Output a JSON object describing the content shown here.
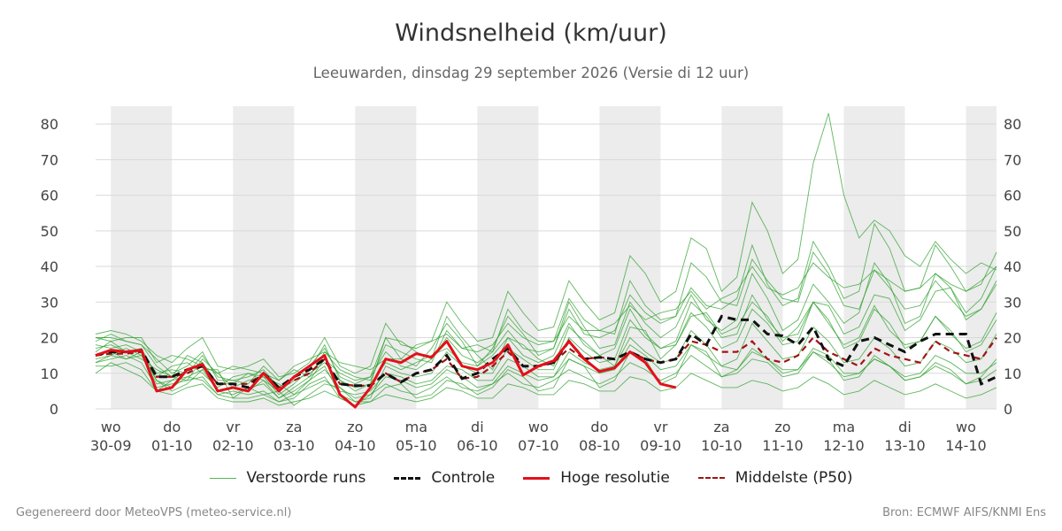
{
  "header": {
    "title": "Windsnelheid (km/uur)",
    "subtitle": "Leeuwarden, dinsdag 29 september 2026 (Versie di 12 uur)"
  },
  "footer": {
    "left": "Gegenereerd door MeteoVPS (meteo-service.nl)",
    "right": "Bron: ECMWF AIFS/KNMI Ens"
  },
  "legend": {
    "members": "Verstoorde runs",
    "control": "Controle",
    "hres": "Hoge resolutie",
    "median": "Middelste (P50)"
  },
  "colors": {
    "members": "#2ca02c",
    "control": "#111111",
    "hres": "#e3101a",
    "median": "#a01414",
    "weekend_band": "#ececec",
    "grid": "#d9d9d9"
  },
  "chart_data": {
    "type": "line",
    "title": "Windsnelheid (km/uur)",
    "subtitle": "Leeuwarden, dinsdag 29 september 2026 (Versie di 12 uur)",
    "ylabel": "",
    "ylim": [
      0,
      85
    ],
    "yticks": [
      0,
      10,
      20,
      30,
      40,
      50,
      60,
      70,
      80
    ],
    "grid": true,
    "legend_position": "bottom",
    "x_unit": "days",
    "xlim": [
      -0.25,
      14.5
    ],
    "x_ticks": [
      {
        "x": 0,
        "day": "wo",
        "date": "30-09"
      },
      {
        "x": 1,
        "day": "do",
        "date": "01-10"
      },
      {
        "x": 2,
        "day": "vr",
        "date": "02-10"
      },
      {
        "x": 3,
        "day": "za",
        "date": "03-10"
      },
      {
        "x": 4,
        "day": "zo",
        "date": "04-10"
      },
      {
        "x": 5,
        "day": "ma",
        "date": "05-10"
      },
      {
        "x": 6,
        "day": "di",
        "date": "06-10"
      },
      {
        "x": 7,
        "day": "wo",
        "date": "07-10"
      },
      {
        "x": 8,
        "day": "do",
        "date": "08-10"
      },
      {
        "x": 9,
        "day": "vr",
        "date": "09-10"
      },
      {
        "x": 10,
        "day": "za",
        "date": "10-10"
      },
      {
        "x": 11,
        "day": "zo",
        "date": "11-10"
      },
      {
        "x": 12,
        "day": "ma",
        "date": "12-10"
      },
      {
        "x": 13,
        "day": "di",
        "date": "13-10"
      },
      {
        "x": 14,
        "day": "wo",
        "date": "14-10"
      }
    ],
    "shaded_ranges": [
      [
        0,
        1
      ],
      [
        2,
        3
      ],
      [
        4,
        5
      ],
      [
        6,
        7
      ],
      [
        8,
        9
      ],
      [
        10,
        11
      ],
      [
        12,
        13
      ],
      [
        14,
        14.5
      ]
    ],
    "x": [
      -0.25,
      0,
      0.25,
      0.5,
      0.75,
      1,
      1.25,
      1.5,
      1.75,
      2,
      2.25,
      2.5,
      2.75,
      3,
      3.25,
      3.5,
      3.75,
      4,
      4.25,
      4.5,
      4.75,
      5,
      5.25,
      5.5,
      5.75,
      6,
      6.25,
      6.5,
      6.75,
      7,
      7.25,
      7.5,
      7.75,
      8,
      8.25,
      8.5,
      8.75,
      9,
      9.25,
      9.5,
      9.75,
      10,
      10.25,
      10.5,
      10.75,
      11,
      11.25,
      11.5,
      11.75,
      12,
      12.25,
      12.5,
      12.75,
      13,
      13.25,
      13.5,
      13.75,
      14,
      14.25,
      14.5
    ],
    "series": [
      {
        "name": "Controle",
        "style": "control",
        "values": [
          15,
          16,
          16,
          16.5,
          9,
          9,
          11,
          12,
          7,
          7,
          6,
          10,
          6,
          9,
          11,
          14,
          7,
          6.5,
          6.5,
          10,
          7.5,
          10,
          11,
          15,
          8.5,
          10,
          14,
          17,
          12,
          12,
          13,
          19,
          14,
          14.5,
          14,
          16,
          14,
          13,
          14,
          21,
          18,
          26,
          25,
          25,
          21,
          20.5,
          18,
          23,
          14,
          12,
          19,
          20,
          18,
          16,
          19,
          21,
          21,
          21,
          7,
          9
        ]
      },
      {
        "name": "Hoge resolutie",
        "style": "hres",
        "values": [
          15,
          16.5,
          16,
          16.5,
          5,
          6,
          11,
          12.5,
          5,
          6,
          5,
          10,
          5,
          9,
          12,
          15,
          4,
          0.5,
          6,
          14,
          13,
          15.5,
          14.5,
          19,
          12,
          11,
          13,
          18,
          9.5,
          12,
          13.5,
          19,
          14,
          10.5,
          11.5,
          16,
          13,
          7,
          6,
          null,
          null,
          null,
          null,
          null,
          null,
          null,
          null,
          null,
          null,
          null,
          null,
          null,
          null,
          null,
          null,
          null,
          null,
          null,
          null,
          null
        ]
      },
      {
        "name": "Middelste (P50)",
        "style": "median",
        "values": [
          15,
          15.5,
          15.5,
          16,
          9,
          9,
          10,
          12,
          7,
          7,
          7,
          10,
          6,
          8,
          10,
          14,
          7,
          6.5,
          6.5,
          10,
          7.5,
          10,
          11,
          14,
          8.5,
          9,
          12,
          16,
          12,
          12,
          13,
          17,
          14,
          14.5,
          14,
          16,
          14,
          13,
          14,
          19,
          18,
          16,
          16,
          19,
          14,
          13,
          15,
          20,
          16,
          14,
          12,
          17,
          15,
          14,
          13,
          19,
          16,
          15,
          14,
          20
        ]
      },
      {
        "name": "",
        "style": "member",
        "values": [
          20,
          20,
          19,
          18,
          12,
          9,
          8,
          14,
          10,
          6,
          8,
          9,
          7,
          4,
          8,
          14,
          10,
          8,
          9,
          20,
          19,
          16,
          14,
          26,
          20,
          15,
          11,
          20,
          18,
          14,
          12,
          23,
          19,
          15,
          12,
          23,
          22,
          14,
          18,
          26,
          27,
          21,
          23,
          30,
          26,
          19,
          23,
          30,
          29,
          21,
          23,
          32,
          31,
          22,
          25,
          33,
          34,
          25,
          28,
          36
        ]
      },
      {
        "name": "",
        "style": "member",
        "values": [
          10,
          13,
          11,
          9,
          5,
          8,
          9,
          11,
          11,
          3,
          3,
          4,
          5,
          1,
          4,
          7,
          6,
          2,
          2,
          6,
          7,
          3,
          4,
          8,
          7,
          4,
          6,
          11,
          9,
          5,
          6,
          14,
          12,
          6,
          8,
          16,
          14,
          7,
          9,
          18,
          16,
          9,
          10,
          14,
          13,
          9,
          10,
          16,
          14,
          8,
          9,
          15,
          12,
          8,
          9,
          13,
          11,
          7,
          9,
          14
        ]
      },
      {
        "name": "",
        "style": "member",
        "values": [
          16,
          19,
          16,
          14,
          11,
          9,
          15,
          13,
          7,
          7,
          10,
          9,
          4,
          7,
          11,
          18,
          8,
          5,
          7,
          20,
          14,
          12,
          17,
          24,
          19,
          12,
          17,
          26,
          21,
          15,
          17,
          30,
          23,
          17,
          18,
          30,
          24,
          20,
          23,
          32,
          25,
          22,
          25,
          38,
          31,
          22,
          25,
          35,
          30,
          24,
          27,
          41,
          35,
          24,
          26,
          38,
          34,
          27,
          31,
          40
        ]
      },
      {
        "name": "",
        "style": "member",
        "values": [
          13,
          14,
          15,
          13,
          6,
          7,
          8,
          9,
          4,
          5,
          4,
          5,
          2,
          4,
          6,
          8,
          5,
          4,
          5,
          10,
          9,
          7,
          8,
          12,
          11,
          8,
          8,
          14,
          12,
          9,
          9,
          14,
          12,
          10,
          11,
          18,
          15,
          11,
          12,
          18,
          15,
          12,
          11,
          16,
          14,
          11,
          11,
          17,
          15,
          10,
          10,
          14,
          12,
          9,
          10,
          15,
          13,
          10,
          10,
          13
        ]
      },
      {
        "name": "",
        "style": "member",
        "values": [
          19,
          21,
          19,
          18,
          14,
          10,
          12,
          16,
          8,
          8,
          9,
          11,
          6,
          9,
          12,
          17,
          9,
          7,
          9,
          16,
          12,
          11,
          14,
          20,
          15,
          13,
          16,
          22,
          17,
          16,
          17,
          28,
          21,
          20,
          22,
          32,
          27,
          24,
          26,
          34,
          29,
          28,
          31,
          46,
          35,
          29,
          31,
          47,
          40,
          31,
          33,
          52,
          45,
          33,
          34,
          46,
          40,
          33,
          35,
          44
        ]
      },
      {
        "name": "",
        "style": "member",
        "values": [
          14,
          15,
          17,
          15,
          8,
          5,
          7,
          11,
          5,
          4,
          6,
          7,
          3,
          5,
          8,
          11,
          6,
          3,
          4,
          9,
          8,
          6,
          7,
          11,
          9,
          6,
          7,
          12,
          10,
          8,
          9,
          16,
          13,
          11,
          12,
          20,
          16,
          13,
          14,
          22,
          18,
          12,
          14,
          24,
          19,
          14,
          15,
          23,
          19,
          13,
          14,
          20,
          17,
          12,
          13,
          19,
          17,
          13,
          14,
          21
        ]
      },
      {
        "name": "",
        "style": "member",
        "values": [
          17,
          18,
          16,
          17,
          9,
          12,
          13,
          10,
          6,
          9,
          10,
          8,
          5,
          8,
          10,
          13,
          8,
          6,
          7,
          13,
          11,
          13,
          15,
          17,
          13,
          12,
          15,
          20,
          15,
          13,
          15,
          24,
          18,
          15,
          17,
          28,
          21,
          17,
          19,
          30,
          26,
          20,
          21,
          32,
          25,
          20,
          21,
          30,
          24,
          18,
          20,
          29,
          22,
          18,
          19,
          26,
          21,
          17,
          19,
          27
        ]
      },
      {
        "name": "",
        "style": "member",
        "values": [
          21,
          22,
          21,
          19,
          15,
          13,
          17,
          20,
          12,
          11,
          12,
          14,
          9,
          10,
          13,
          20,
          12,
          10,
          12,
          24,
          18,
          17,
          19,
          30,
          24,
          19,
          20,
          33,
          27,
          22,
          23,
          36,
          30,
          25,
          27,
          43,
          38,
          30,
          33,
          48,
          45,
          33,
          37,
          58,
          50,
          38,
          42,
          69,
          83,
          60,
          48,
          53,
          50,
          43,
          40,
          47,
          42,
          38,
          41,
          39
        ]
      },
      {
        "name": "",
        "style": "member",
        "values": [
          12,
          12,
          13,
          11,
          5,
          4,
          6,
          7,
          3,
          2,
          2,
          3,
          1,
          2,
          3,
          5,
          3,
          1,
          2,
          4,
          3,
          2,
          3,
          6,
          5,
          3,
          3,
          7,
          6,
          4,
          4,
          8,
          7,
          5,
          5,
          9,
          8,
          5,
          6,
          10,
          8,
          6,
          6,
          8,
          7,
          5,
          6,
          9,
          7,
          4,
          5,
          8,
          6,
          4,
          5,
          7,
          5,
          3,
          4,
          6
        ]
      },
      {
        "name": "",
        "style": "member",
        "values": [
          18,
          17,
          18,
          16,
          10,
          11,
          10,
          15,
          9,
          8,
          7,
          12,
          8,
          11,
          9,
          16,
          11,
          9,
          8,
          18,
          16,
          14,
          13,
          22,
          17,
          18,
          16,
          28,
          22,
          19,
          19,
          31,
          25,
          22,
          21,
          36,
          29,
          25,
          26,
          41,
          37,
          30,
          29,
          42,
          36,
          31,
          30,
          44,
          38,
          29,
          28,
          39,
          34,
          28,
          29,
          36,
          31,
          26,
          28,
          35
        ]
      },
      {
        "name": "",
        "style": "member",
        "values": [
          15,
          16,
          14,
          15,
          7,
          8,
          11,
          13,
          5,
          6,
          5,
          8,
          3,
          6,
          9,
          12,
          4,
          2,
          3,
          12,
          10,
          9,
          10,
          16,
          12,
          10,
          10,
          17,
          14,
          11,
          11,
          20,
          16,
          13,
          14,
          25,
          20,
          17,
          18,
          27,
          23,
          17,
          19,
          28,
          24,
          18,
          19,
          30,
          25,
          17,
          19,
          28,
          24,
          17,
          19,
          26,
          22,
          16,
          18,
          25
        ]
      },
      {
        "name": "",
        "style": "member",
        "values": [
          20,
          19,
          20,
          20,
          13,
          15,
          14,
          12,
          10,
          12,
          11,
          10,
          8,
          12,
          14,
          16,
          13,
          12,
          11,
          14,
          14,
          18,
          19,
          21,
          17,
          16,
          18,
          24,
          20,
          18,
          19,
          26,
          22,
          22,
          24,
          29,
          25,
          27,
          28,
          33,
          28,
          31,
          33,
          40,
          34,
          32,
          34,
          41,
          37,
          34,
          35,
          39,
          36,
          33,
          34,
          38,
          35,
          33,
          36,
          40
        ]
      },
      {
        "name": "",
        "style": "member",
        "values": [
          13,
          15,
          14,
          16,
          8,
          6,
          9,
          8,
          4,
          3,
          6,
          4,
          2,
          3,
          7,
          9,
          3,
          1,
          4,
          7,
          5,
          4,
          6,
          9,
          6,
          5,
          7,
          10,
          7,
          6,
          8,
          11,
          9,
          7,
          9,
          13,
          11,
          8,
          10,
          15,
          12,
          9,
          11,
          17,
          14,
          10,
          11,
          16,
          13,
          9,
          10,
          14,
          12,
          8,
          9,
          12,
          10,
          7,
          8,
          11
        ]
      }
    ]
  }
}
